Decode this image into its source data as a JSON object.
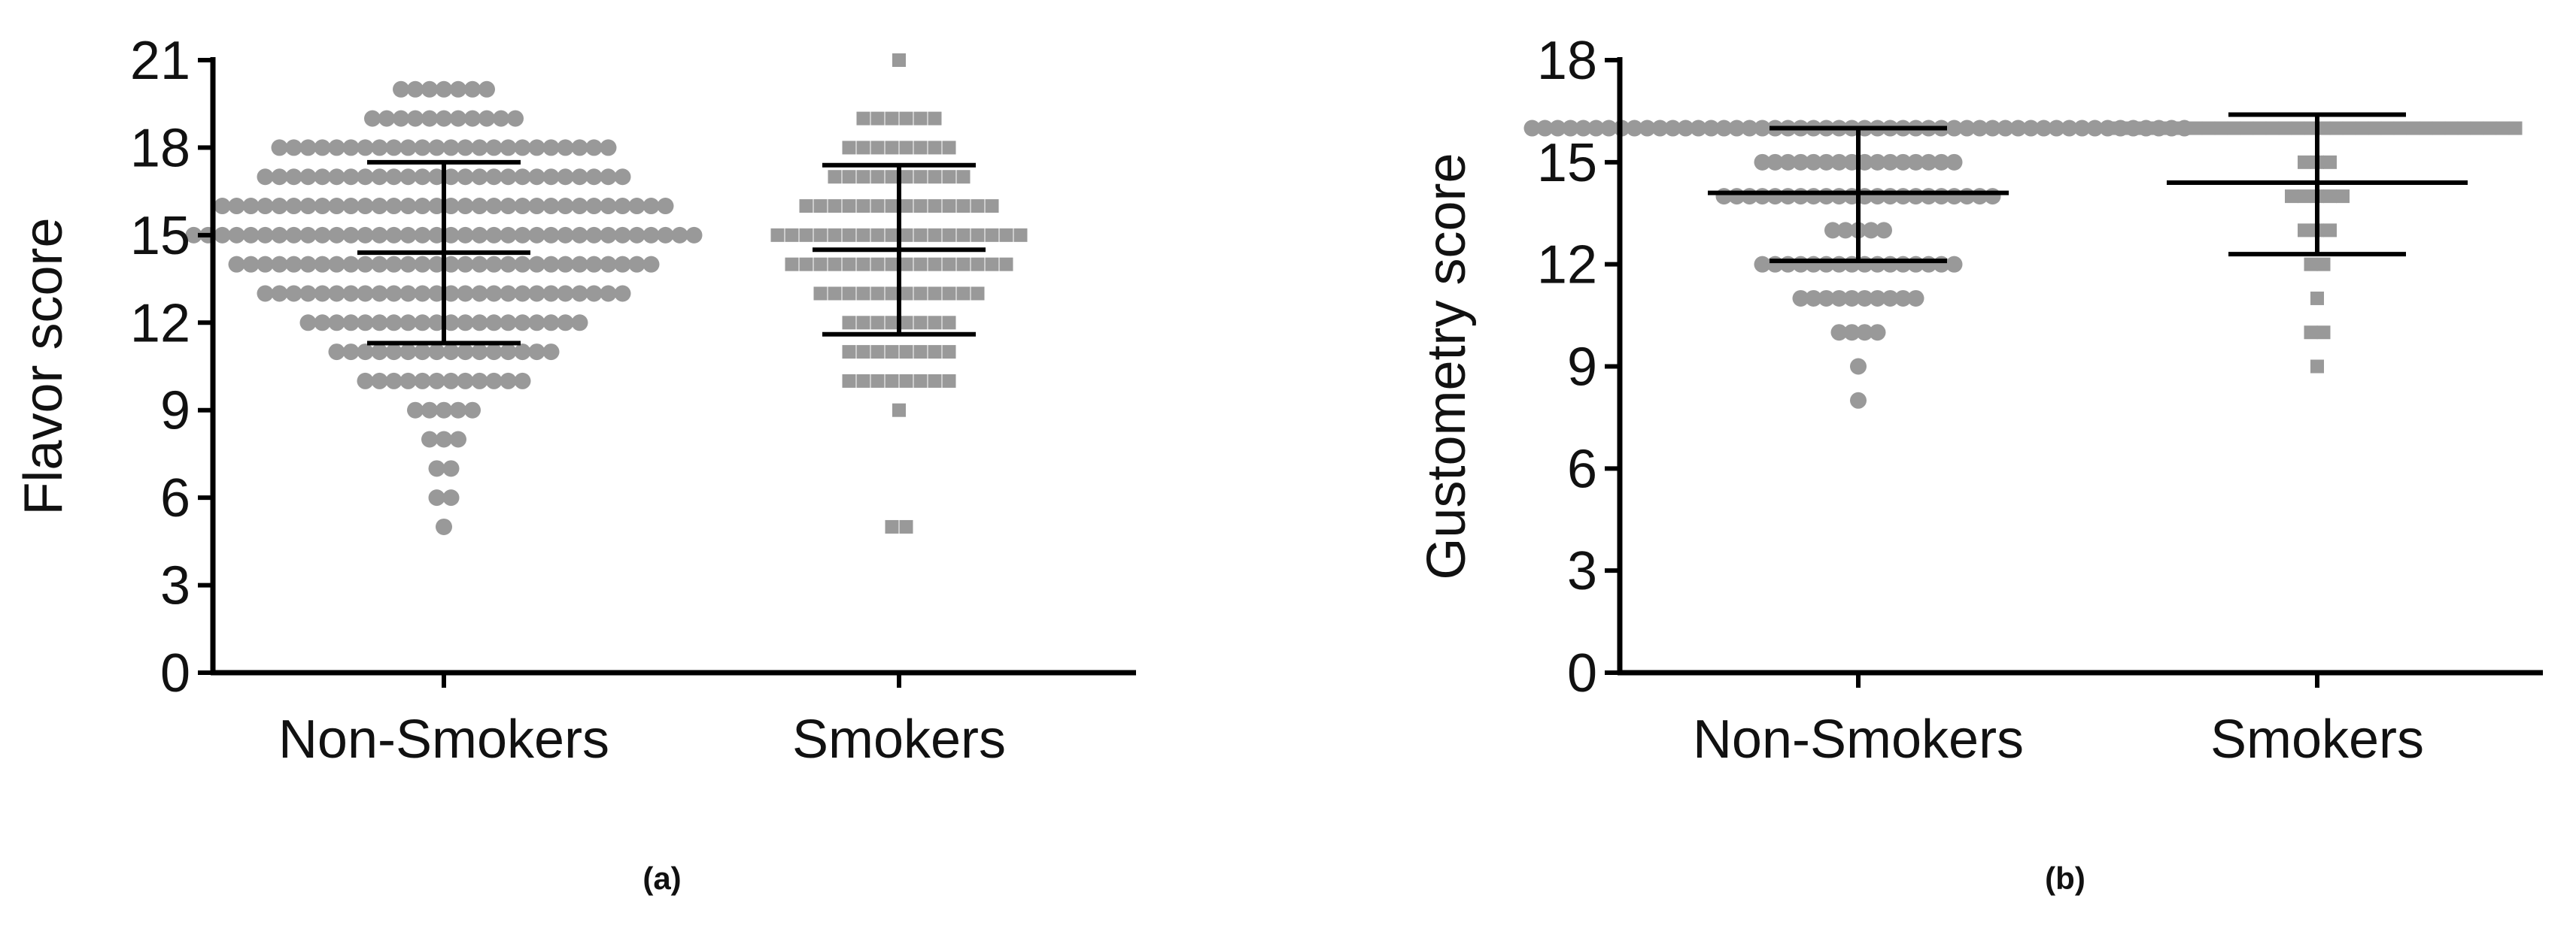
{
  "chart_data": [
    {
      "type": "scatter",
      "subtype": "dot-strip",
      "panel_label": "(a)",
      "ylabel": "Flavor score",
      "ylim": [
        0,
        21
      ],
      "yticks": [
        0,
        3,
        6,
        9,
        12,
        15,
        18,
        21
      ],
      "categories": [
        "Non-Smokers",
        "Smokers"
      ],
      "marker_color": "#999999",
      "summary_color": "#000000",
      "series": [
        {
          "marker": "circle",
          "points": [
            {
              "y": 20,
              "n": 7
            },
            {
              "y": 19,
              "n": 11
            },
            {
              "y": 18,
              "n": 24
            },
            {
              "y": 17,
              "n": 26
            },
            {
              "y": 16,
              "n": 32
            },
            {
              "y": 15,
              "n": 36
            },
            {
              "y": 14,
              "n": 30
            },
            {
              "y": 13,
              "n": 26
            },
            {
              "y": 12,
              "n": 20
            },
            {
              "y": 11,
              "n": 16
            },
            {
              "y": 10,
              "n": 12
            },
            {
              "y": 9,
              "n": 5
            },
            {
              "y": 8,
              "n": 3
            },
            {
              "y": 7,
              "n": 2
            },
            {
              "y": 6,
              "n": 2
            },
            {
              "y": 5,
              "n": 1
            }
          ],
          "mean": 14.4,
          "upper": 17.5,
          "lower": 11.3
        },
        {
          "marker": "square",
          "points": [
            {
              "y": 21,
              "n": 1
            },
            {
              "y": 19,
              "n": 6
            },
            {
              "y": 18,
              "n": 8
            },
            {
              "y": 17,
              "n": 10
            },
            {
              "y": 16,
              "n": 14
            },
            {
              "y": 15,
              "n": 18
            },
            {
              "y": 14,
              "n": 16
            },
            {
              "y": 13,
              "n": 12
            },
            {
              "y": 12,
              "n": 8
            },
            {
              "y": 11,
              "n": 8
            },
            {
              "y": 10,
              "n": 8
            },
            {
              "y": 9,
              "n": 1
            },
            {
              "y": 5,
              "n": 2
            }
          ],
          "mean": 14.5,
          "upper": 17.4,
          "lower": 11.6
        }
      ]
    },
    {
      "type": "scatter",
      "subtype": "dot-strip",
      "panel_label": "(b)",
      "ylabel": "Gustometry score",
      "ylim": [
        0,
        18
      ],
      "yticks": [
        0,
        3,
        6,
        9,
        12,
        15,
        18
      ],
      "categories": [
        "Non-Smokers",
        "Smokers"
      ],
      "marker_color": "#999999",
      "summary_color": "#000000",
      "series": [
        {
          "marker": "circle",
          "points": [
            {
              "y": 16,
              "n": 52
            },
            {
              "y": 15,
              "n": 16
            },
            {
              "y": 14,
              "n": 22
            },
            {
              "y": 13,
              "n": 5
            },
            {
              "y": 12,
              "n": 16
            },
            {
              "y": 11,
              "n": 10
            },
            {
              "y": 10,
              "n": 4
            },
            {
              "y": 9,
              "n": 1
            },
            {
              "y": 8,
              "n": 1
            }
          ],
          "mean": 14.1,
          "upper": 16.0,
          "lower": 12.1
        },
        {
          "marker": "square",
          "points": [
            {
              "y": 16,
              "n": 32
            },
            {
              "y": 15,
              "n": 3
            },
            {
              "y": 14,
              "n": 5
            },
            {
              "y": 13,
              "n": 3
            },
            {
              "y": 12,
              "n": 2
            },
            {
              "y": 11,
              "n": 1
            },
            {
              "y": 10,
              "n": 2
            },
            {
              "y": 9,
              "n": 1
            }
          ],
          "mean": 14.4,
          "upper": 16.4,
          "lower": 12.3
        }
      ]
    }
  ]
}
